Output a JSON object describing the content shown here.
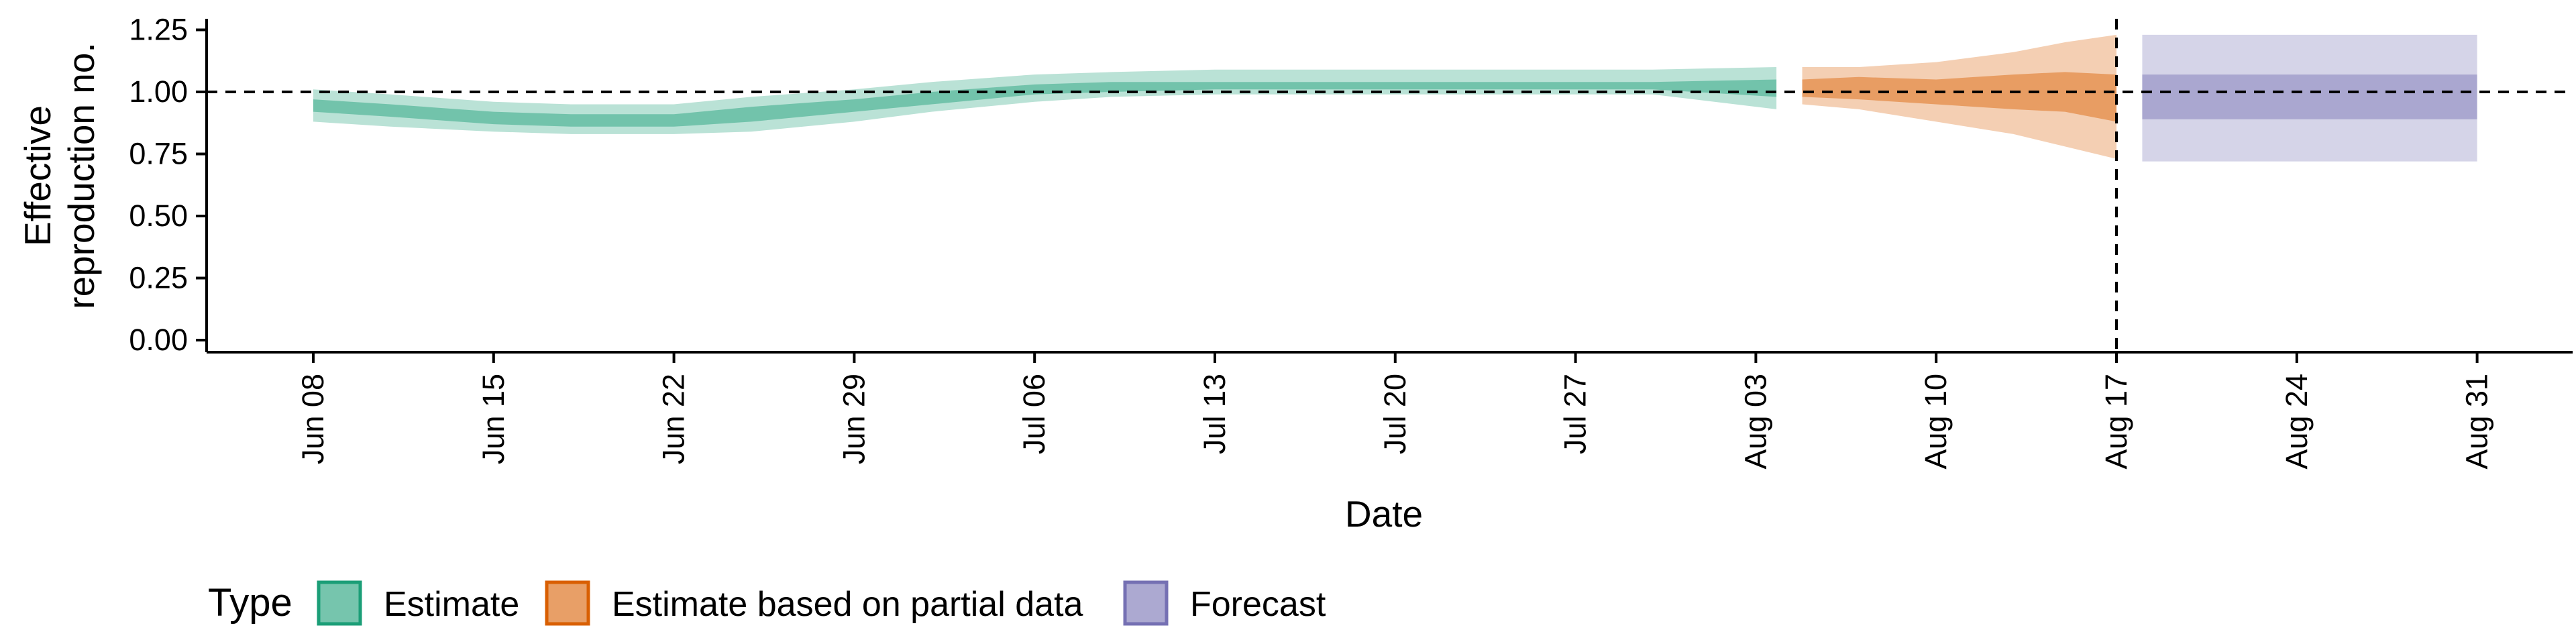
{
  "chart_data": {
    "type": "area",
    "xlabel": "Date",
    "ylabel_lines": [
      "Effective",
      "reproduction no."
    ],
    "ylim": [
      0,
      1.25
    ],
    "y_ticks": [
      "0.00",
      "0.25",
      "0.50",
      "0.75",
      "1.00",
      "1.25"
    ],
    "y_tick_values": [
      0,
      0.25,
      0.5,
      0.75,
      1.0,
      1.25
    ],
    "x_range_days": [
      -6,
      84
    ],
    "x_ticks": [
      "Jun 08",
      "Jun 15",
      "Jun 22",
      "Jun 29",
      "Jul 06",
      "Jul 13",
      "Jul 20",
      "Jul 27",
      "Aug 03",
      "Aug 10",
      "Aug 17",
      "Aug 24",
      "Aug 31"
    ],
    "x_tick_days": [
      0,
      7,
      14,
      21,
      28,
      35,
      42,
      49,
      56,
      63,
      70,
      77,
      84
    ],
    "hline_y": 1.0,
    "vline_day": 70,
    "legend_title": "Type",
    "series": [
      {
        "name": "Estimate",
        "color": "#1B9E77",
        "day": [
          0,
          3,
          7,
          10,
          14,
          17,
          21,
          24,
          28,
          31,
          35,
          38,
          42,
          45,
          49,
          52,
          56.8
        ],
        "outer_lo": [
          0.88,
          0.86,
          0.84,
          0.83,
          0.83,
          0.84,
          0.88,
          0.92,
          0.96,
          0.98,
          0.99,
          0.99,
          0.99,
          0.99,
          0.99,
          0.99,
          0.93
        ],
        "outer_hi": [
          1.01,
          0.99,
          0.96,
          0.95,
          0.95,
          0.98,
          1.01,
          1.04,
          1.07,
          1.08,
          1.09,
          1.09,
          1.09,
          1.09,
          1.09,
          1.09,
          1.1
        ],
        "inner_lo": [
          0.92,
          0.9,
          0.87,
          0.86,
          0.86,
          0.88,
          0.92,
          0.95,
          0.99,
          1.0,
          1.01,
          1.01,
          1.01,
          1.01,
          1.01,
          1.01,
          0.98
        ],
        "inner_hi": [
          0.97,
          0.95,
          0.92,
          0.91,
          0.91,
          0.94,
          0.97,
          1.0,
          1.03,
          1.04,
          1.04,
          1.04,
          1.04,
          1.04,
          1.04,
          1.04,
          1.05
        ]
      },
      {
        "name": "Estimate based on partial data",
        "color": "#D95F02",
        "day": [
          57.8,
          60,
          63,
          66,
          68,
          70
        ],
        "outer_lo": [
          0.95,
          0.93,
          0.88,
          0.83,
          0.78,
          0.73
        ],
        "outer_hi": [
          1.1,
          1.1,
          1.12,
          1.16,
          1.2,
          1.23
        ],
        "inner_lo": [
          0.98,
          0.97,
          0.95,
          0.93,
          0.92,
          0.88
        ],
        "inner_hi": [
          1.05,
          1.06,
          1.05,
          1.07,
          1.08,
          1.07
        ]
      },
      {
        "name": "Forecast",
        "color": "#7570B3",
        "day": [
          71,
          84
        ],
        "outer_lo": [
          0.72,
          0.72
        ],
        "outer_hi": [
          1.23,
          1.23
        ],
        "inner_lo": [
          0.89,
          0.89
        ],
        "inner_hi": [
          1.07,
          1.07
        ]
      }
    ]
  }
}
